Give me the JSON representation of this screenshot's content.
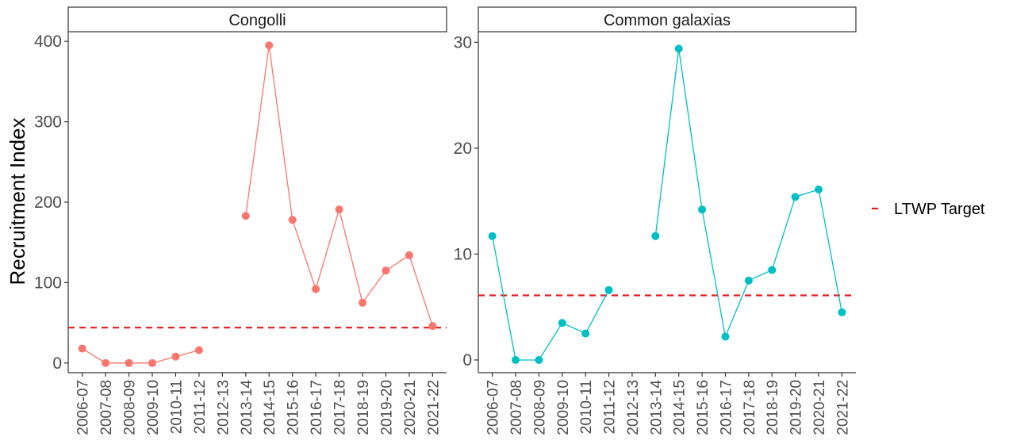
{
  "chart_data": {
    "type": "line",
    "ylabel": "Recruitment Index",
    "xlabel": "",
    "categories": [
      "2006-07",
      "2007-08",
      "2008-09",
      "2009-10",
      "2010-11",
      "2011-12",
      "2012-13",
      "2013-14",
      "2014-15",
      "2015-16",
      "2016-17",
      "2017-18",
      "2018-19",
      "2019-20",
      "2020-21",
      "2021-22"
    ],
    "legend": {
      "position": "right",
      "entries": [
        {
          "label": "LTWP Target",
          "color": "#e41a1c",
          "style": "dashed"
        }
      ]
    },
    "grid": false,
    "panels": [
      {
        "title": "Congolli",
        "color": "#f8766d",
        "ylim": [
          -12,
          412
        ],
        "yticks": [
          0,
          100,
          200,
          300,
          400
        ],
        "target": 44,
        "values": [
          18,
          0,
          0,
          0,
          8,
          16,
          null,
          183,
          395,
          178,
          92,
          191,
          75,
          115,
          134,
          46
        ]
      },
      {
        "title": "Common galaxias",
        "color": "#00bfc4",
        "ylim": [
          -1.2,
          31
        ],
        "yticks": [
          0,
          10,
          20,
          30
        ],
        "target": 6.1,
        "values": [
          11.7,
          0,
          0,
          3.5,
          2.5,
          6.6,
          null,
          11.7,
          29.4,
          14.2,
          2.2,
          7.5,
          8.5,
          15.4,
          16.1,
          4.5
        ]
      }
    ]
  }
}
